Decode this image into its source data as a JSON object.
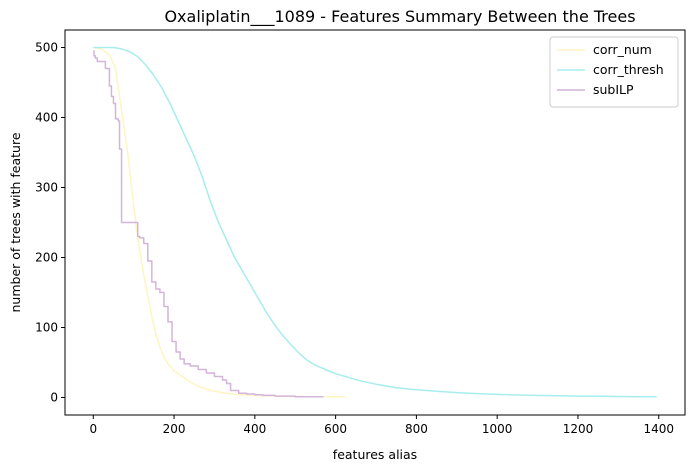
{
  "chart_data": {
    "type": "line",
    "title": "Oxaliplatin___1089 - Features Summary Between the Trees",
    "xlabel": "features alias",
    "ylabel": "number of trees with feature",
    "xlim": [
      -70,
      1465
    ],
    "ylim": [
      -25,
      525
    ],
    "xticks": [
      0,
      200,
      400,
      600,
      800,
      1000,
      1200,
      1400
    ],
    "yticks": [
      0,
      100,
      200,
      300,
      400,
      500
    ],
    "grid": false,
    "legend_position": "top-right",
    "series": [
      {
        "name": "corr_num",
        "color": "#fff4c2",
        "step": false,
        "x": [
          0,
          20,
          40,
          55,
          65,
          75,
          85,
          95,
          105,
          115,
          125,
          135,
          145,
          155,
          165,
          175,
          185,
          200,
          220,
          240,
          260,
          280,
          300,
          330,
          360,
          400,
          450,
          500,
          550,
          600,
          625
        ],
        "y": [
          500,
          498,
          490,
          470,
          430,
          390,
          350,
          300,
          250,
          210,
          175,
          145,
          115,
          90,
          72,
          58,
          48,
          38,
          30,
          22,
          16,
          12,
          9,
          6,
          4,
          3,
          2,
          1.5,
          1,
          1,
          1
        ]
      },
      {
        "name": "corr_thresh",
        "color": "#a8eded",
        "step": false,
        "x": [
          0,
          50,
          70,
          90,
          110,
          130,
          150,
          170,
          190,
          210,
          230,
          250,
          270,
          290,
          310,
          330,
          350,
          370,
          390,
          410,
          430,
          450,
          470,
          490,
          510,
          530,
          550,
          575,
          600,
          630,
          660,
          700,
          750,
          800,
          850,
          900,
          950,
          1000,
          1050,
          1100,
          1150,
          1200,
          1250,
          1300,
          1350,
          1395
        ],
        "y": [
          500,
          500,
          498,
          494,
          487,
          475,
          460,
          442,
          420,
          395,
          370,
          345,
          315,
          280,
          250,
          225,
          200,
          180,
          160,
          140,
          120,
          103,
          88,
          75,
          63,
          53,
          46,
          40,
          34,
          29,
          24,
          19,
          14,
          11,
          9,
          7,
          5.5,
          4.5,
          3.5,
          3,
          2.5,
          2,
          2,
          1.5,
          1,
          1
        ]
      },
      {
        "name": "subILP",
        "color": "#d4b4d9",
        "step": true,
        "x": [
          0,
          2,
          5,
          10,
          25,
          30,
          40,
          45,
          50,
          55,
          58,
          62,
          65,
          70,
          75,
          80,
          95,
          110,
          115,
          125,
          135,
          145,
          155,
          165,
          175,
          185,
          195,
          205,
          215,
          225,
          240,
          260,
          280,
          300,
          320,
          330,
          340,
          360,
          380,
          400,
          420,
          450,
          500,
          540,
          570
        ],
        "y": [
          495,
          488,
          485,
          480,
          480,
          470,
          445,
          430,
          420,
          398,
          398,
          395,
          355,
          250,
          250,
          250,
          250,
          230,
          228,
          220,
          195,
          165,
          155,
          150,
          130,
          108,
          80,
          65,
          55,
          48,
          45,
          40,
          35,
          30,
          25,
          20,
          10,
          6,
          5,
          4,
          3,
          2,
          1,
          1,
          1
        ]
      }
    ]
  }
}
